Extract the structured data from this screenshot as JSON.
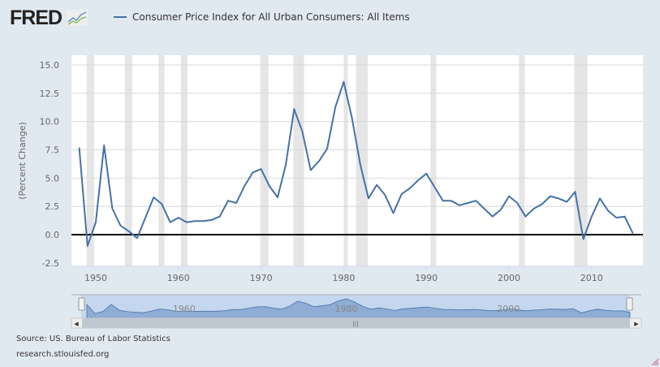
{
  "header": {
    "logo": "FRED",
    "legend_label": "Consumer Price Index for All Urban Consumers: All Items"
  },
  "footer": {
    "source": "Source: US. Bureau of Labor Statistics",
    "url": "research.stlouisfed.org"
  },
  "colors": {
    "series": "#4572a7",
    "recession": "#e5e5e5",
    "navigator_fill": "#8eacd4"
  },
  "chart_data": {
    "type": "line",
    "title": "Consumer Price Index for All Urban Consumers: All Items",
    "xlabel": "",
    "ylabel": "(Percent Change)",
    "xlim": [
      1947.7,
      2016.8
    ],
    "ylim": [
      -2.5,
      15
    ],
    "yticks": [
      15.0,
      12.5,
      10.0,
      7.5,
      5.0,
      2.5,
      0.0,
      -2.5
    ],
    "ytick_labels": [
      "15.0",
      "12.5",
      "10.0",
      "7.5",
      "5.0",
      "2.5",
      "0.0",
      "-2.5"
    ],
    "xticks": [
      1950,
      1960,
      1970,
      1980,
      1990,
      2000,
      2010
    ],
    "xtick_labels": [
      "1950",
      "1960",
      "1970",
      "1980",
      "1990",
      "2000",
      "2010"
    ],
    "navigator_labels": [
      "1960",
      "1980",
      "2000"
    ],
    "grid": true,
    "legend": "top",
    "x": [
      1948,
      1949,
      1950,
      1951,
      1952,
      1953,
      1954,
      1955,
      1956,
      1957,
      1958,
      1959,
      1960,
      1961,
      1962,
      1963,
      1964,
      1965,
      1966,
      1967,
      1968,
      1969,
      1970,
      1971,
      1972,
      1973,
      1974,
      1975,
      1976,
      1977,
      1978,
      1979,
      1980,
      1981,
      1982,
      1983,
      1984,
      1985,
      1986,
      1987,
      1988,
      1989,
      1990,
      1991,
      1992,
      1993,
      1994,
      1995,
      1996,
      1997,
      1998,
      1999,
      2000,
      2001,
      2002,
      2003,
      2004,
      2005,
      2006,
      2007,
      2008,
      2009,
      2010,
      2011,
      2012,
      2013,
      2014,
      2015
    ],
    "series": [
      {
        "name": "Consumer Price Index for All Urban Consumers: All Items",
        "values": [
          7.7,
          -1.0,
          1.1,
          7.9,
          2.3,
          0.8,
          0.3,
          -0.3,
          1.5,
          3.3,
          2.7,
          1.1,
          1.5,
          1.1,
          1.2,
          1.2,
          1.3,
          1.6,
          3.0,
          2.8,
          4.3,
          5.5,
          5.8,
          4.3,
          3.3,
          6.2,
          11.1,
          9.1,
          5.7,
          6.5,
          7.6,
          11.3,
          13.5,
          10.3,
          6.2,
          3.2,
          4.4,
          3.5,
          1.9,
          3.6,
          4.1,
          4.8,
          5.4,
          4.2,
          3.0,
          3.0,
          2.6,
          2.8,
          3.0,
          2.3,
          1.6,
          2.2,
          3.4,
          2.8,
          1.6,
          2.3,
          2.7,
          3.4,
          3.2,
          2.9,
          3.8,
          -0.4,
          1.6,
          3.2,
          2.1,
          1.5,
          1.6,
          0.1
        ]
      }
    ],
    "recessions": [
      [
        1948.9,
        1949.8
      ],
      [
        1953.5,
        1954.4
      ],
      [
        1957.6,
        1958.3
      ],
      [
        1960.3,
        1961.1
      ],
      [
        1969.9,
        1970.9
      ],
      [
        1973.9,
        1975.2
      ],
      [
        1980.0,
        1980.5
      ],
      [
        1981.5,
        1982.9
      ],
      [
        1990.5,
        1991.2
      ],
      [
        2001.2,
        2001.9
      ],
      [
        2007.9,
        2009.5
      ]
    ]
  }
}
